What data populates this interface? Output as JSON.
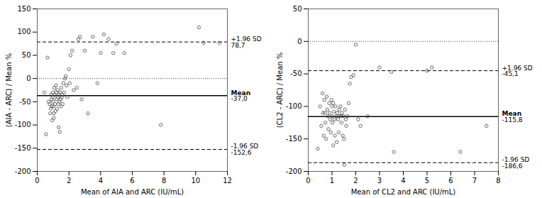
{
  "chart_data": [
    {
      "type": "scatter",
      "x_label": "Mean of AIA and ARC (IU/mL)",
      "y_label": "(AIA - ARC) / Mean %",
      "xlim": [
        0,
        12
      ],
      "ylim": [
        -200,
        150
      ],
      "xticks": [
        0,
        2,
        4,
        6,
        8,
        10,
        12
      ],
      "yticks": [
        -200,
        -150,
        -100,
        -50,
        0,
        50,
        100,
        150
      ],
      "color": "#444444",
      "marker": "open_circle",
      "x": [
        0.45,
        0.55,
        0.65,
        0.72,
        0.78,
        0.82,
        0.85,
        0.88,
        0.9,
        0.92,
        0.95,
        0.98,
        1.0,
        1.0,
        1.02,
        1.05,
        1.05,
        1.08,
        1.1,
        1.12,
        1.15,
        1.18,
        1.2,
        1.22,
        1.25,
        1.28,
        1.3,
        1.32,
        1.35,
        1.38,
        1.4,
        1.42,
        1.45,
        1.48,
        1.5,
        1.52,
        1.55,
        1.58,
        1.6,
        1.65,
        1.7,
        1.75,
        1.8,
        1.85,
        1.9,
        2.0,
        2.05,
        2.1,
        2.2,
        2.3,
        2.5,
        2.6,
        2.7,
        2.8,
        3.0,
        3.2,
        3.5,
        3.8,
        4.0,
        4.2,
        4.5,
        4.8,
        5.0,
        5.5,
        7.8,
        10.2,
        10.5,
        11.5
      ],
      "y": [
        -30,
        -120,
        45,
        -50,
        -55,
        -75,
        -65,
        -35,
        -45,
        -60,
        -90,
        -30,
        -40,
        -50,
        -60,
        -75,
        -85,
        -20,
        -35,
        -55,
        -70,
        -15,
        -30,
        -45,
        -65,
        -25,
        -40,
        -55,
        -105,
        -35,
        -50,
        -115,
        -30,
        -45,
        -60,
        -20,
        -40,
        -35,
        -55,
        -10,
        -30,
        0,
        5,
        -15,
        -40,
        20,
        -10,
        50,
        60,
        -25,
        -20,
        85,
        90,
        -45,
        60,
        -75,
        90,
        -10,
        55,
        95,
        85,
        55,
        75,
        55,
        -100,
        110,
        77,
        77
      ],
      "reference_lines": [
        {
          "y": 0,
          "color": "#000000",
          "line_style": "dotted"
        },
        {
          "y": -37.0,
          "label": "Mean",
          "value_label": "-37,0",
          "color": "#000000",
          "line_style": "solid"
        },
        {
          "y": 78.7,
          "label": "+1.96 SD",
          "value_label": "78,7",
          "color": "#000000",
          "line_style": "dashed"
        },
        {
          "y": -152.6,
          "label": "-1.96 SD",
          "value_label": "-152,6",
          "color": "#000000",
          "line_style": "dashed"
        }
      ]
    },
    {
      "type": "scatter",
      "x_label": "Mean of CL2 and ARC (IU/mL)",
      "y_label": "(CL2 - ARC) / Mean %",
      "xlim": [
        0,
        8
      ],
      "ylim": [
        -200,
        50
      ],
      "xticks": [
        0,
        1,
        2,
        3,
        4,
        5,
        6,
        7,
        8
      ],
      "yticks": [
        -200,
        -150,
        -100,
        -50,
        0,
        50
      ],
      "color": "#444444",
      "marker": "open_circle",
      "x": [
        0.4,
        0.5,
        0.55,
        0.6,
        0.62,
        0.65,
        0.68,
        0.7,
        0.72,
        0.75,
        0.78,
        0.8,
        0.82,
        0.85,
        0.88,
        0.9,
        0.92,
        0.95,
        0.98,
        1.0,
        1.0,
        1.02,
        1.05,
        1.05,
        1.08,
        1.1,
        1.12,
        1.15,
        1.18,
        1.2,
        1.22,
        1.25,
        1.28,
        1.3,
        1.32,
        1.35,
        1.38,
        1.4,
        1.42,
        1.45,
        1.48,
        1.5,
        1.52,
        1.55,
        1.58,
        1.6,
        1.65,
        1.7,
        1.75,
        1.8,
        1.9,
        2.0,
        2.1,
        2.2,
        2.5,
        3.0,
        3.5,
        3.6,
        5.0,
        5.2,
        6.4,
        7.5
      ],
      "y": [
        -165,
        -100,
        -130,
        -80,
        -110,
        -145,
        -90,
        -110,
        -125,
        -150,
        -85,
        -105,
        -115,
        -135,
        -95,
        -110,
        -120,
        -140,
        -90,
        -100,
        -115,
        -125,
        -160,
        -95,
        -108,
        -120,
        -145,
        -100,
        -115,
        -155,
        -110,
        -120,
        -140,
        -105,
        -115,
        -100,
        -115,
        -125,
        -110,
        -145,
        -115,
        -150,
        -190,
        -105,
        -120,
        -130,
        -115,
        -95,
        -65,
        -55,
        -52,
        -5,
        -120,
        -130,
        -115,
        -40,
        -47,
        -170,
        -45,
        -40,
        -170,
        -130
      ],
      "reference_lines": [
        {
          "y": 0,
          "color": "#000000",
          "line_style": "dotted"
        },
        {
          "y": -115.8,
          "label": "Mean",
          "value_label": "-115,8",
          "color": "#000000",
          "line_style": "solid"
        },
        {
          "y": -45.1,
          "label": "+1.96 SD",
          "value_label": "-45,1",
          "color": "#000000",
          "line_style": "dashed"
        },
        {
          "y": -186.6,
          "label": "-1.96 SD",
          "value_label": "-186,6",
          "color": "#000000",
          "line_style": "dashed"
        }
      ]
    }
  ]
}
